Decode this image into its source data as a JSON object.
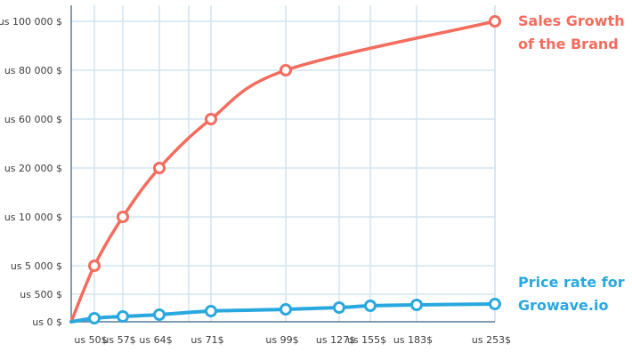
{
  "chart_data": {
    "type": "line",
    "categories": [
      "us 50$",
      "us 57$",
      "us 64$",
      "us 71$",
      "us 99$",
      "us 127$",
      "us 155$",
      "us 183$",
      "us 253$"
    ],
    "y_tick_labels": [
      "us 0 $",
      "us 500 $",
      "us 5 000 $",
      "us 10 000 $",
      "us 20 000 $",
      "us 60 000 $",
      "us 80 000 $",
      "us 100 000 $"
    ],
    "y_tick_values": [
      0,
      500,
      5000,
      10000,
      20000,
      60000,
      80000,
      100000
    ],
    "grid": true,
    "series": [
      {
        "name": "Sales Growth of the Brand",
        "name_lines": [
          "Sales Growth",
          "of the Brand"
        ],
        "color": "#f36c5e",
        "values": [
          5000,
          10000,
          20000,
          60000,
          80000,
          null,
          null,
          null,
          100000
        ]
      },
      {
        "name": "Price rate for Growave.io",
        "name_lines": [
          "Price rate for",
          "Growave.io"
        ],
        "color": "#29a8e0",
        "values": [
          50,
          57,
          64,
          71,
          99,
          127,
          155,
          183,
          253
        ]
      }
    ],
    "legend_position": "right"
  },
  "colors": {
    "grid": "#d3e3ef",
    "axis": "#5c7f99",
    "tick_text": "#3d3d3d"
  }
}
